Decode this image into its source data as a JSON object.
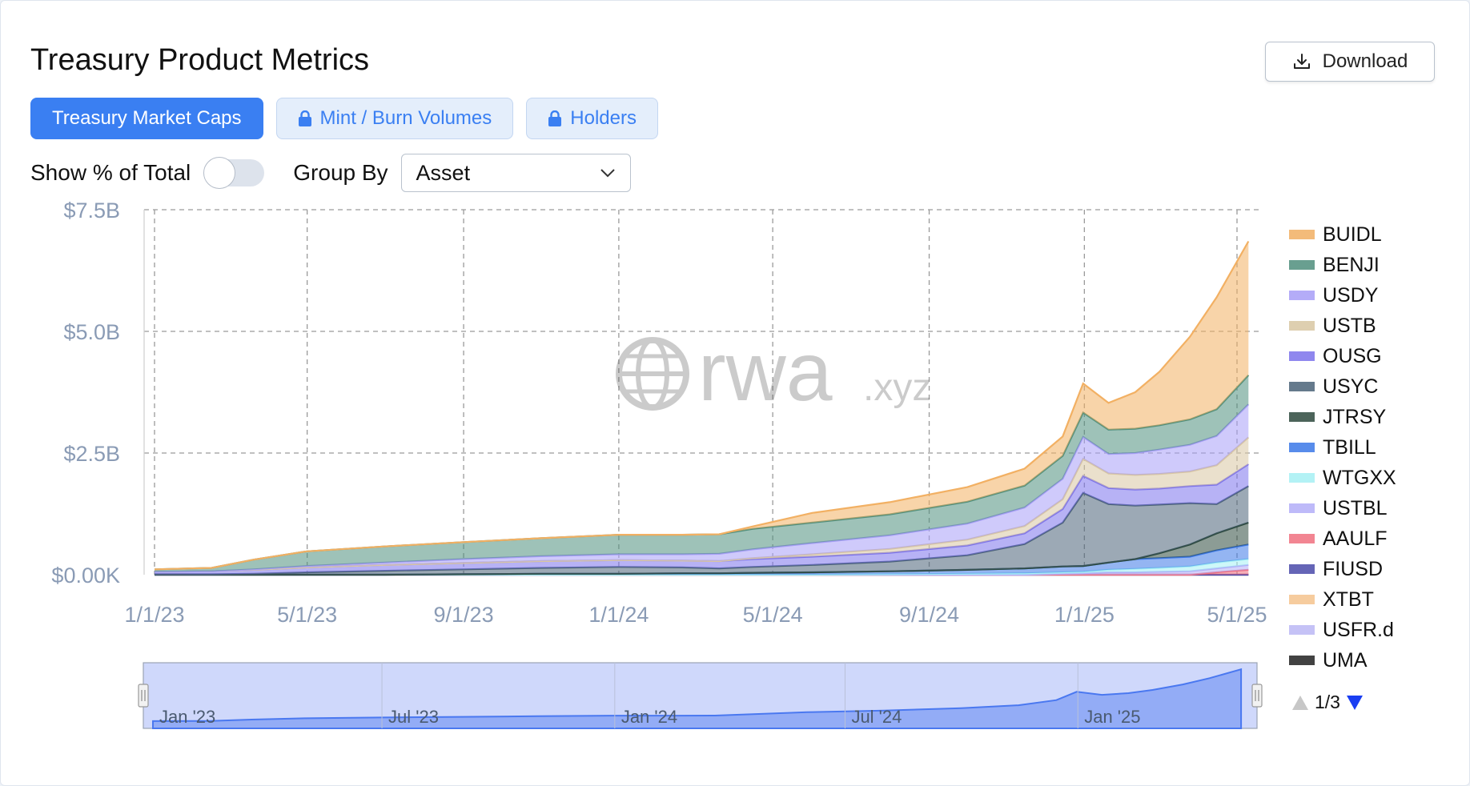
{
  "header": {
    "title": "Treasury Product Metrics",
    "download_label": "Download"
  },
  "tabs": [
    {
      "label": "Treasury Market Caps",
      "active": true,
      "locked": false
    },
    {
      "label": "Mint / Burn Volumes",
      "active": false,
      "locked": true
    },
    {
      "label": "Holders",
      "active": false,
      "locked": true
    }
  ],
  "controls": {
    "show_pct_label": "Show % of Total",
    "show_pct_on": false,
    "group_by_label": "Group By",
    "group_by_value": "Asset"
  },
  "watermark": {
    "text": "rwa",
    "suffix": ".xyz"
  },
  "navigator": {
    "labels": [
      "Jan '23",
      "Jul '23",
      "Jan '24",
      "Jul '24",
      "Jan '25"
    ]
  },
  "pager": {
    "text": "1/3"
  },
  "colors": {
    "accent": "#3a7ff2",
    "navigator": "#4a78f0"
  },
  "chart_data": {
    "type": "area",
    "stacked": true,
    "y_tick_labels": [
      "$0.00K",
      "$2.5B",
      "$5.0B",
      "$7.5B"
    ],
    "y_ticks": [
      0,
      2.5,
      5,
      7.5
    ],
    "ylim": [
      0,
      7.5
    ],
    "x_tick_labels": [
      "1/1/23",
      "5/1/23",
      "9/1/23",
      "1/1/24",
      "5/1/24",
      "9/1/24",
      "1/1/25",
      "5/1/25"
    ],
    "x_ticks": [
      "2023-01-01",
      "2023-05-01",
      "2023-09-01",
      "2024-01-01",
      "2024-05-01",
      "2024-09-01",
      "2025-01-01",
      "2025-05-01"
    ],
    "grid": true,
    "legend_position": "right",
    "x": [
      "2023-01-01",
      "2023-02-15",
      "2023-03-20",
      "2023-05-01",
      "2023-07-01",
      "2023-09-01",
      "2023-11-01",
      "2024-01-01",
      "2024-02-20",
      "2024-03-20",
      "2024-04-15",
      "2024-06-01",
      "2024-08-01",
      "2024-10-01",
      "2024-11-15",
      "2024-12-15",
      "2024-12-31",
      "2025-01-20",
      "2025-02-10",
      "2025-03-01",
      "2025-03-25",
      "2025-04-15",
      "2025-05-10"
    ],
    "series": [
      {
        "name": "UMA",
        "color": "#222222",
        "values": [
          0,
          0,
          0,
          0,
          0,
          0,
          0,
          0,
          0,
          0,
          0,
          0,
          0,
          0,
          0,
          0,
          0,
          0,
          0,
          0,
          0,
          0,
          0
        ]
      },
      {
        "name": "USFR.d",
        "color": "#bcb8f5",
        "values": [
          0,
          0,
          0,
          0,
          0,
          0,
          0,
          0,
          0,
          0,
          0,
          0,
          0,
          0,
          0,
          0,
          0,
          0,
          0,
          0,
          0,
          0,
          0
        ]
      },
      {
        "name": "XTBT",
        "color": "#f5c48e",
        "values": [
          0,
          0,
          0,
          0,
          0,
          0,
          0,
          0,
          0,
          0,
          0,
          0,
          0,
          0,
          0,
          0,
          0,
          0,
          0,
          0,
          0,
          0,
          0
        ]
      },
      {
        "name": "FIUSD",
        "color": "#4b4baa",
        "values": [
          0,
          0,
          0,
          0,
          0,
          0,
          0,
          0,
          0,
          0,
          0,
          0,
          0,
          0,
          0,
          0,
          0,
          0,
          0,
          0,
          0,
          0,
          0
        ]
      },
      {
        "name": "AAULF",
        "color": "#f07080",
        "values": [
          0,
          0,
          0,
          0,
          0,
          0,
          0,
          0,
          0,
          0,
          0,
          0,
          0,
          0,
          0,
          0,
          0,
          0,
          0,
          0,
          0,
          0.05,
          0.1
        ]
      },
      {
        "name": "USTBL",
        "color": "#b3aef8",
        "values": [
          0,
          0,
          0,
          0,
          0,
          0,
          0,
          0,
          0,
          0,
          0,
          0,
          0,
          0,
          0,
          0.02,
          0.03,
          0.05,
          0.05,
          0.06,
          0.07,
          0.08,
          0.1
        ]
      },
      {
        "name": "WTGXX",
        "color": "#a6f0f4",
        "values": [
          0,
          0,
          0,
          0,
          0,
          0,
          0,
          0,
          0,
          0,
          0,
          0,
          0.01,
          0.02,
          0.03,
          0.03,
          0.03,
          0.05,
          0.07,
          0.08,
          0.1,
          0.12,
          0.12
        ]
      },
      {
        "name": "TBILL",
        "color": "#3c78e8",
        "values": [
          0,
          0,
          0,
          0,
          0,
          0.01,
          0.02,
          0.02,
          0.03,
          0.03,
          0.04,
          0.05,
          0.06,
          0.08,
          0.1,
          0.12,
          0.12,
          0.15,
          0.2,
          0.2,
          0.2,
          0.25,
          0.3
        ]
      },
      {
        "name": "JTRSY",
        "color": "#2d4a3e",
        "values": [
          0,
          0,
          0,
          0,
          0,
          0,
          0,
          0,
          0,
          0,
          0,
          0,
          0,
          0,
          0,
          0,
          0,
          0,
          0,
          0.1,
          0.25,
          0.35,
          0.45
        ]
      },
      {
        "name": "USYC",
        "color": "#4b6378",
        "values": [
          0.01,
          0.01,
          0.02,
          0.05,
          0.08,
          0.1,
          0.12,
          0.14,
          0.12,
          0.1,
          0.12,
          0.15,
          0.2,
          0.3,
          0.5,
          0.9,
          1.5,
          1.2,
          1.1,
          1.0,
          0.85,
          0.6,
          0.75
        ]
      },
      {
        "name": "OUSG",
        "color": "#7c73ec",
        "values": [
          0.05,
          0.06,
          0.08,
          0.1,
          0.12,
          0.13,
          0.14,
          0.14,
          0.14,
          0.15,
          0.16,
          0.17,
          0.18,
          0.2,
          0.22,
          0.28,
          0.35,
          0.33,
          0.33,
          0.33,
          0.35,
          0.4,
          0.45
        ]
      },
      {
        "name": "USTB",
        "color": "#d9c7a3",
        "values": [
          0,
          0,
          0,
          0,
          0,
          0,
          0,
          0,
          0,
          0,
          0.02,
          0.05,
          0.08,
          0.12,
          0.15,
          0.2,
          0.35,
          0.3,
          0.3,
          0.3,
          0.3,
          0.4,
          0.55
        ]
      },
      {
        "name": "USDY",
        "color": "#a79ef7",
        "values": [
          0,
          0,
          0.01,
          0.03,
          0.05,
          0.08,
          0.1,
          0.12,
          0.13,
          0.15,
          0.18,
          0.23,
          0.28,
          0.33,
          0.38,
          0.42,
          0.45,
          0.4,
          0.45,
          0.5,
          0.55,
          0.6,
          0.68
        ]
      },
      {
        "name": "BENJI",
        "color": "#4f8f7d",
        "values": [
          0.05,
          0.07,
          0.2,
          0.3,
          0.33,
          0.35,
          0.37,
          0.4,
          0.4,
          0.4,
          0.42,
          0.42,
          0.43,
          0.45,
          0.45,
          0.47,
          0.5,
          0.5,
          0.5,
          0.5,
          0.52,
          0.55,
          0.6
        ]
      },
      {
        "name": "BUIDL",
        "color": "#f2b063",
        "values": [
          0,
          0,
          0,
          0,
          0,
          0,
          0,
          0,
          0,
          0,
          0.05,
          0.2,
          0.25,
          0.3,
          0.35,
          0.4,
          0.6,
          0.55,
          0.75,
          1.1,
          1.7,
          2.3,
          2.75
        ]
      }
    ]
  }
}
